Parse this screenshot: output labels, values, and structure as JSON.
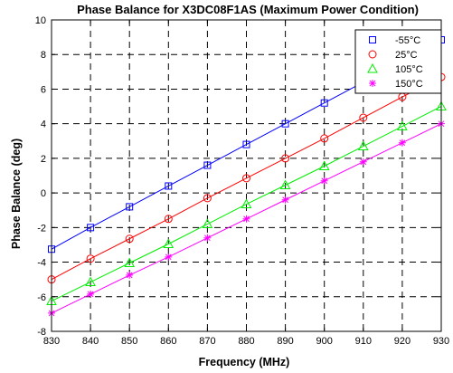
{
  "chart_data": {
    "type": "line",
    "title": "Phase Balance for X3DC08F1AS (Maximum Power Condition)",
    "xlabel": "Frequency (MHz)",
    "ylabel": "Phase Balance (deg)",
    "xlim": [
      830,
      930
    ],
    "ylim": [
      -8,
      10
    ],
    "x_ticks": [
      830,
      840,
      850,
      860,
      870,
      880,
      890,
      900,
      910,
      920,
      930
    ],
    "y_ticks": [
      -8,
      -6,
      -4,
      -2,
      0,
      2,
      4,
      6,
      8,
      10
    ],
    "grid": true,
    "legend_position": "top-right",
    "x": [
      830,
      840,
      850,
      860,
      870,
      880,
      890,
      900,
      910,
      920,
      930
    ],
    "series": [
      {
        "name": "-55°C",
        "color": "#0000ff",
        "marker": "square",
        "values": [
          -3.25,
          -2.0,
          -0.8,
          0.4,
          1.6,
          2.8,
          4.0,
          5.2,
          6.4,
          7.6,
          8.85
        ]
      },
      {
        "name": "25°C",
        "color": "#ff0000",
        "marker": "circle",
        "values": [
          -5.0,
          -3.8,
          -2.65,
          -1.5,
          -0.3,
          0.85,
          2.0,
          3.15,
          4.35,
          5.55,
          6.7
        ]
      },
      {
        "name": "105°C",
        "color": "#00ee00",
        "marker": "triangle",
        "values": [
          -6.25,
          -5.15,
          -4.05,
          -2.95,
          -1.8,
          -0.65,
          0.45,
          1.55,
          2.7,
          3.85,
          5.0
        ]
      },
      {
        "name": "150°C",
        "color": "#ff00ff",
        "marker": "asterisk",
        "values": [
          -6.95,
          -5.85,
          -4.75,
          -3.7,
          -2.6,
          -1.5,
          -0.4,
          0.7,
          1.8,
          2.9,
          4.0
        ]
      }
    ]
  }
}
